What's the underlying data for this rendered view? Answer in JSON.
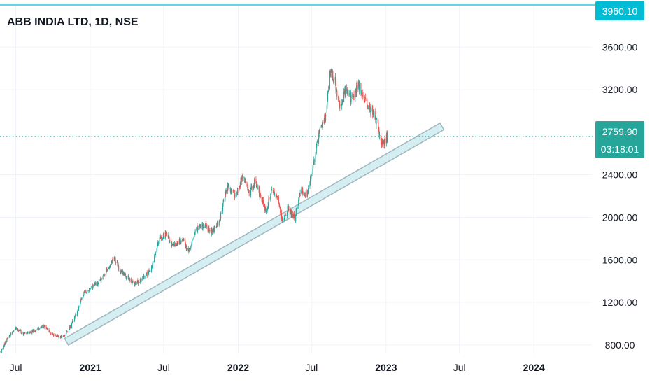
{
  "header": {
    "title": "ABB INDIA LTD, 1D, NSE"
  },
  "colors": {
    "up": "#26a69a",
    "down": "#ef5350",
    "grid": "#f0f3fa",
    "price_line": "#26a69a",
    "top_line": "#00bcd4",
    "channel_fill": "#d5eef2",
    "channel_stroke": "#9fb6bd",
    "axis_text": "#131722"
  },
  "badges": {
    "top_price": "3960.10",
    "last_price": "2759.90",
    "countdown": "03:18:01"
  },
  "chart_data": {
    "type": "candlestick",
    "title": "ABB INDIA LTD, 1D, NSE",
    "x_range": [
      "2020-05-23",
      "2024-05-23"
    ],
    "y_range": [
      720,
      3990
    ],
    "y_ticks": [
      {
        "value": 800,
        "label": "800.00"
      },
      {
        "value": 1200,
        "label": "1200.00"
      },
      {
        "value": 1600,
        "label": "1600.00"
      },
      {
        "value": 2000,
        "label": "2000.00"
      },
      {
        "value": 2400,
        "label": "2400.00"
      },
      {
        "value": 3200,
        "label": "3200.00"
      },
      {
        "value": 3600,
        "label": "3600.00"
      }
    ],
    "x_ticks": [
      {
        "date": "2020-07-01",
        "label": "Jul",
        "bold": false
      },
      {
        "date": "2021-01-01",
        "label": "2021",
        "bold": true
      },
      {
        "date": "2021-07-01",
        "label": "Jul",
        "bold": false
      },
      {
        "date": "2022-01-01",
        "label": "2022",
        "bold": true
      },
      {
        "date": "2022-07-01",
        "label": "Jul",
        "bold": false
      },
      {
        "date": "2023-01-01",
        "label": "2023",
        "bold": true
      },
      {
        "date": "2023-07-01",
        "label": "Jul",
        "bold": false
      },
      {
        "date": "2024-01-01",
        "label": "2024",
        "bold": true
      }
    ],
    "price_path": [
      [
        "2020-05-25",
        730
      ],
      [
        "2020-06-10",
        860
      ],
      [
        "2020-07-01",
        960
      ],
      [
        "2020-07-20",
        900
      ],
      [
        "2020-08-15",
        930
      ],
      [
        "2020-09-10",
        980
      ],
      [
        "2020-09-28",
        900
      ],
      [
        "2020-10-25",
        870
      ],
      [
        "2020-11-10",
        950
      ],
      [
        "2020-11-28",
        1100
      ],
      [
        "2020-12-15",
        1280
      ],
      [
        "2021-01-05",
        1350
      ],
      [
        "2021-01-25",
        1400
      ],
      [
        "2021-02-12",
        1500
      ],
      [
        "2021-03-01",
        1620
      ],
      [
        "2021-03-15",
        1500
      ],
      [
        "2021-04-01",
        1440
      ],
      [
        "2021-04-20",
        1370
      ],
      [
        "2021-05-10",
        1420
      ],
      [
        "2021-06-01",
        1520
      ],
      [
        "2021-06-20",
        1800
      ],
      [
        "2021-07-10",
        1850
      ],
      [
        "2021-07-25",
        1720
      ],
      [
        "2021-08-15",
        1800
      ],
      [
        "2021-09-01",
        1680
      ],
      [
        "2021-09-20",
        1900
      ],
      [
        "2021-10-10",
        1920
      ],
      [
        "2021-10-28",
        1860
      ],
      [
        "2021-11-15",
        1960
      ],
      [
        "2021-12-05",
        2300
      ],
      [
        "2021-12-25",
        2200
      ],
      [
        "2022-01-12",
        2370
      ],
      [
        "2022-01-28",
        2220
      ],
      [
        "2022-02-10",
        2330
      ],
      [
        "2022-02-25",
        2200
      ],
      [
        "2022-03-10",
        2050
      ],
      [
        "2022-03-25",
        2280
      ],
      [
        "2022-04-10",
        2150
      ],
      [
        "2022-04-20",
        1960
      ],
      [
        "2022-05-05",
        2100
      ],
      [
        "2022-05-20",
        1990
      ],
      [
        "2022-06-05",
        2250
      ],
      [
        "2022-06-20",
        2200
      ],
      [
        "2022-07-05",
        2500
      ],
      [
        "2022-07-20",
        2800
      ],
      [
        "2022-08-05",
        2950
      ],
      [
        "2022-08-15",
        3350
      ],
      [
        "2022-08-25",
        3300
      ],
      [
        "2022-09-10",
        3050
      ],
      [
        "2022-09-25",
        3200
      ],
      [
        "2022-10-10",
        3100
      ],
      [
        "2022-10-25",
        3250
      ],
      [
        "2022-11-10",
        3100
      ],
      [
        "2022-11-25",
        3000
      ],
      [
        "2022-12-10",
        2900
      ],
      [
        "2022-12-20",
        2680
      ],
      [
        "2022-12-31",
        2720
      ],
      [
        "2023-01-04",
        2760
      ]
    ],
    "trend_channel": {
      "start": {
        "date": "2020-11-03",
        "price": 830
      },
      "end": {
        "date": "2023-05-19",
        "price": 2855
      }
    },
    "last_price": 2759.9,
    "high_marker": 3960.1,
    "grid": true
  }
}
